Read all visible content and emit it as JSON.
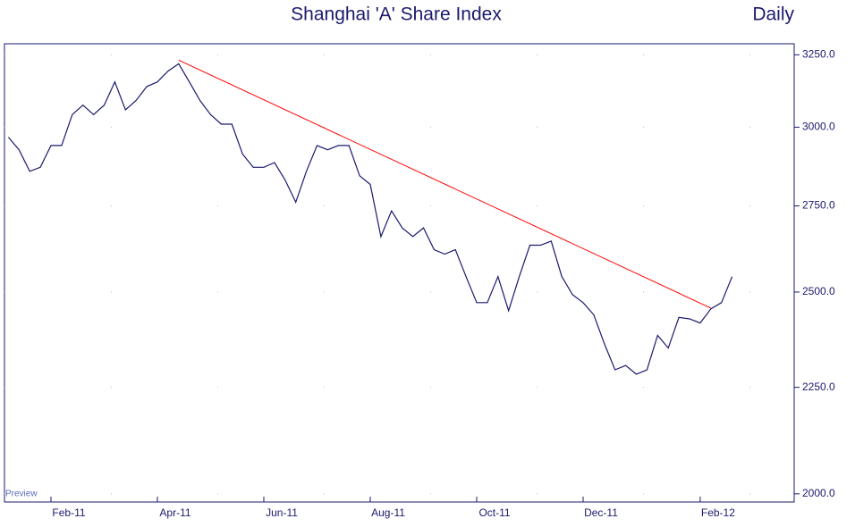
{
  "chart_data": {
    "type": "line",
    "title": "Shanghai 'A' Share Index",
    "frequency": "Daily",
    "watermark": "Preview",
    "categories": [
      null,
      null,
      null,
      null,
      "Feb-11",
      null,
      null,
      null,
      null,
      null,
      null,
      null,
      null,
      null,
      "Apr-11",
      null,
      null,
      null,
      null,
      null,
      null,
      null,
      null,
      null,
      "Jun-11",
      null,
      null,
      null,
      null,
      null,
      null,
      null,
      null,
      null,
      "Aug-11",
      null,
      null,
      null,
      null,
      null,
      null,
      null,
      null,
      null,
      "Oct-11",
      null,
      null,
      null,
      null,
      null,
      null,
      null,
      null,
      null,
      "Dec-11",
      null,
      null,
      null,
      null,
      null,
      null,
      null,
      null,
      null,
      null,
      "Feb-12",
      null,
      null,
      null
    ],
    "series": [
      {
        "color": "#1a1a6e",
        "values": [
          2967,
          2926,
          2857,
          2870,
          2940,
          2940,
          3042,
          3074,
          3042,
          3074,
          3154,
          3058,
          3090,
          3138,
          3154,
          3192,
          3218,
          3154,
          3090,
          3042,
          3010,
          3010,
          2912,
          2870,
          2870,
          2885,
          2830,
          2761,
          2857,
          2940,
          2926,
          2940,
          2940,
          2843,
          2816,
          2658,
          2735,
          2684,
          2658,
          2684,
          2620,
          2607,
          2620,
          2543,
          2471,
          2471,
          2543,
          2449,
          2543,
          2633,
          2633,
          2645,
          2543,
          2493,
          2471,
          2438,
          2361,
          2294,
          2305,
          2283,
          2294,
          2383,
          2350,
          2431,
          2427,
          2416,
          2454,
          2471,
          2543
        ]
      }
    ],
    "trendline": {
      "color": "#ff0000",
      "x": [
        16,
        66
      ],
      "values": [
        3231,
        2456
      ]
    },
    "log_scale": true,
    "ylim": [
      1982,
      3290
    ],
    "yticks": [
      {
        "value": 2000,
        "label": "2000.0"
      },
      {
        "value": 2250,
        "label": "2250.0"
      },
      {
        "value": 2500,
        "label": "2500.0"
      },
      {
        "value": 2750,
        "label": "2750.0"
      },
      {
        "value": 3000,
        "label": "3000.0"
      },
      {
        "value": 3250,
        "label": "3250.0"
      }
    ],
    "grid": true
  }
}
